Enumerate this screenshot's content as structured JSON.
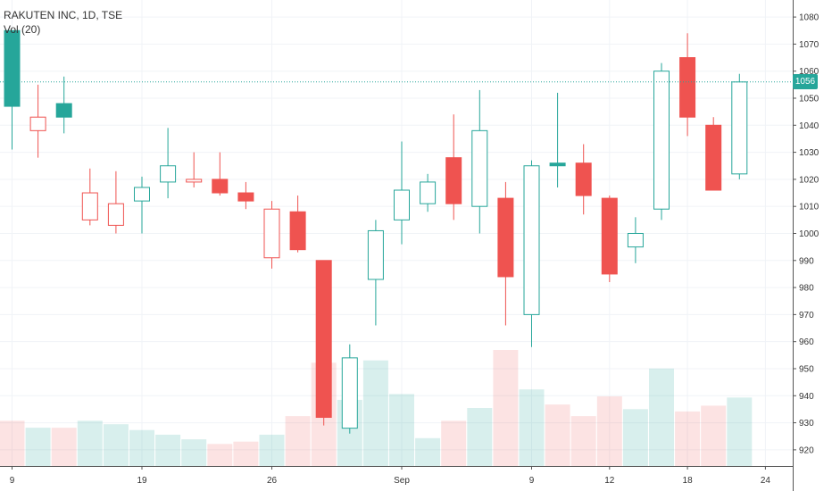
{
  "chart_data": {
    "type": "candlestick",
    "title": "RAKUTEN INC, 1D, TSE",
    "volume_label": "Vol (20)",
    "last_price": "1056",
    "y_ticks": [
      920,
      930,
      940,
      950,
      960,
      970,
      980,
      990,
      1000,
      1010,
      1020,
      1030,
      1040,
      1050,
      1060,
      1070,
      1080
    ],
    "ylim": [
      916,
      1083
    ],
    "x_labels": [
      {
        "label": "9",
        "index": 0
      },
      {
        "label": "19",
        "index": 5
      },
      {
        "label": "26",
        "index": 10
      },
      {
        "label": "Sep",
        "index": 15
      },
      {
        "label": "9",
        "index": 20
      },
      {
        "label": "12",
        "index": 23
      },
      {
        "label": "18",
        "index": 26
      },
      {
        "label": "24",
        "index": 29
      }
    ],
    "up_color": "#26a69a",
    "down_color": "#ef5350",
    "candles": [
      {
        "o": 1047,
        "h": 1075,
        "l": 1031,
        "c": 1075,
        "filled": true
      },
      {
        "o": 1043,
        "h": 1055,
        "l": 1028,
        "c": 1038,
        "filled": false
      },
      {
        "o": 1043,
        "h": 1058,
        "l": 1037,
        "c": 1048,
        "filled": true
      },
      {
        "o": 1015,
        "h": 1024,
        "l": 1003,
        "c": 1005,
        "filled": false
      },
      {
        "o": 1011,
        "h": 1023,
        "l": 1000,
        "c": 1003,
        "filled": false
      },
      {
        "o": 1012,
        "h": 1021,
        "l": 1000,
        "c": 1017,
        "filled": false
      },
      {
        "o": 1019,
        "h": 1039,
        "l": 1013,
        "c": 1025,
        "filled": false
      },
      {
        "o": 1020,
        "h": 1030,
        "l": 1017,
        "c": 1019,
        "filled": false
      },
      {
        "o": 1020,
        "h": 1030,
        "l": 1014,
        "c": 1015,
        "filled": true
      },
      {
        "o": 1015,
        "h": 1019,
        "l": 1009,
        "c": 1012,
        "filled": true
      },
      {
        "o": 1009,
        "h": 1012,
        "l": 987,
        "c": 991,
        "filled": false
      },
      {
        "o": 1008,
        "h": 1014,
        "l": 993,
        "c": 994,
        "filled": true
      },
      {
        "o": 990,
        "h": 990,
        "l": 929,
        "c": 932,
        "filled": true
      },
      {
        "o": 928,
        "h": 959,
        "l": 926,
        "c": 954,
        "filled": false
      },
      {
        "o": 983,
        "h": 1005,
        "l": 966,
        "c": 1001,
        "filled": false
      },
      {
        "o": 1005,
        "h": 1034,
        "l": 996,
        "c": 1016,
        "filled": false
      },
      {
        "o": 1011,
        "h": 1022,
        "l": 1008,
        "c": 1019,
        "filled": false
      },
      {
        "o": 1028,
        "h": 1044,
        "l": 1005,
        "c": 1011,
        "filled": true
      },
      {
        "o": 1010,
        "h": 1053,
        "l": 1000,
        "c": 1038,
        "filled": false
      },
      {
        "o": 1013,
        "h": 1019,
        "l": 966,
        "c": 984,
        "filled": true
      },
      {
        "o": 970,
        "h": 1027,
        "l": 958,
        "c": 1025,
        "filled": false
      },
      {
        "o": 1025,
        "h": 1052,
        "l": 1017,
        "c": 1026,
        "filled": true
      },
      {
        "o": 1026,
        "h": 1033,
        "l": 1007,
        "c": 1014,
        "filled": true
      },
      {
        "o": 1013,
        "h": 1014,
        "l": 982,
        "c": 985,
        "filled": true
      },
      {
        "o": 995,
        "h": 1006,
        "l": 989,
        "c": 1000,
        "filled": false
      },
      {
        "o": 1009,
        "h": 1063,
        "l": 1005,
        "c": 1060,
        "filled": false
      },
      {
        "o": 1065,
        "h": 1074,
        "l": 1036,
        "c": 1043,
        "filled": true
      },
      {
        "o": 1040,
        "h": 1043,
        "l": 1016,
        "c": 1016,
        "filled": true
      },
      {
        "o": 1022,
        "h": 1059,
        "l": 1020,
        "c": 1056,
        "filled": false
      }
    ],
    "volume": [
      {
        "v": 0.39,
        "up": false
      },
      {
        "v": 0.33,
        "up": true
      },
      {
        "v": 0.33,
        "up": false
      },
      {
        "v": 0.39,
        "up": true
      },
      {
        "v": 0.36,
        "up": true
      },
      {
        "v": 0.31,
        "up": true
      },
      {
        "v": 0.27,
        "up": true
      },
      {
        "v": 0.23,
        "up": true
      },
      {
        "v": 0.19,
        "up": false
      },
      {
        "v": 0.21,
        "up": false
      },
      {
        "v": 0.27,
        "up": true
      },
      {
        "v": 0.43,
        "up": false
      },
      {
        "v": 0.89,
        "up": false
      },
      {
        "v": 0.57,
        "up": true
      },
      {
        "v": 0.91,
        "up": true
      },
      {
        "v": 0.62,
        "up": true
      },
      {
        "v": 0.24,
        "up": true
      },
      {
        "v": 0.39,
        "up": false
      },
      {
        "v": 0.5,
        "up": true
      },
      {
        "v": 1.0,
        "up": false
      },
      {
        "v": 0.66,
        "up": true
      },
      {
        "v": 0.53,
        "up": false
      },
      {
        "v": 0.43,
        "up": false
      },
      {
        "v": 0.6,
        "up": false
      },
      {
        "v": 0.49,
        "up": true
      },
      {
        "v": 0.84,
        "up": true
      },
      {
        "v": 0.47,
        "up": false
      },
      {
        "v": 0.52,
        "up": false
      },
      {
        "v": 0.59,
        "up": true
      }
    ]
  }
}
